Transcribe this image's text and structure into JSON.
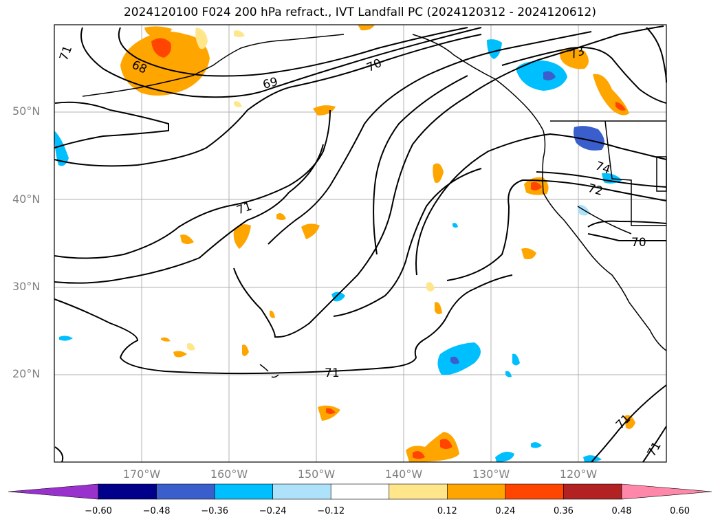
{
  "title": "2024120100 F024 200 hPa refract., IVT Landfall PC (2024120312 - 2024120612)",
  "lat_labels": [
    "50°N",
    "40°N",
    "30°N",
    "20°N"
  ],
  "lon_labels": [
    "170°W",
    "160°W",
    "150°W",
    "140°W",
    "130°W",
    "120°W"
  ],
  "contour_labels": [
    "71",
    "68",
    "69",
    "70",
    "73",
    "74",
    "72",
    "71",
    "70",
    "71",
    "71",
    "71"
  ],
  "colorbar": {
    "ticks": [
      "−0.60",
      "−0.48",
      "−0.36",
      "−0.24",
      "−0.12",
      "0.12",
      "0.24",
      "0.36",
      "0.48",
      "0.60"
    ],
    "colors": [
      "#9932cc",
      "#00008b",
      "#3a5fcd",
      "#00bfff",
      "#aee2fa",
      "#ffffff",
      "#ffe68a",
      "#ffa500",
      "#ff4500",
      "#b22222",
      "#ff88aa"
    ]
  },
  "colors": {
    "positive_light": "#ffe68a",
    "positive_mid": "#ffa500",
    "positive_high": "#ff4500",
    "negative_light": "#aee2fa",
    "negative_mid": "#00bfff",
    "negative_high": "#3a5fcd",
    "grid": "#b0b0b0",
    "contour": "#000000"
  }
}
